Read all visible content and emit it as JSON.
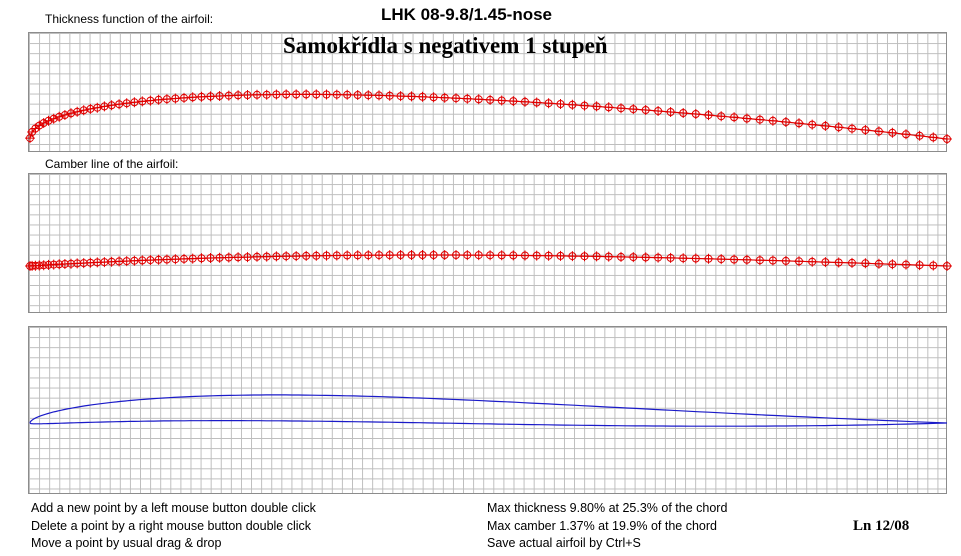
{
  "header": {
    "airfoil_name": "LHK 08-9.8/1.45-nose",
    "caption": "Samokřídla s negativem 1 stupeň"
  },
  "panels": {
    "thickness_label": "Thickness function of the airfoil:",
    "camber_label": "Camber line of the airfoil:"
  },
  "help": [
    "Add a new point by a left mouse button double click",
    "Delete a point by a right mouse button double click",
    "Move a point by usual drag & drop"
  ],
  "stats": [
    "Max thickness 9.80% at 25.3% of the chord",
    "Max camber 1.37% at 19.9% of the chord",
    "Save actual airfoil by Ctrl+S"
  ],
  "signature": "Ln 12/08",
  "colors": {
    "points": "#e00000",
    "outline": "#1a1ac8",
    "grid": "#bdbdbd"
  },
  "airfoil": {
    "max_thickness_pct": 9.8,
    "max_thickness_pos_pct": 25.3,
    "max_camber_pct": 1.37,
    "max_camber_pos_pct": 19.9
  }
}
